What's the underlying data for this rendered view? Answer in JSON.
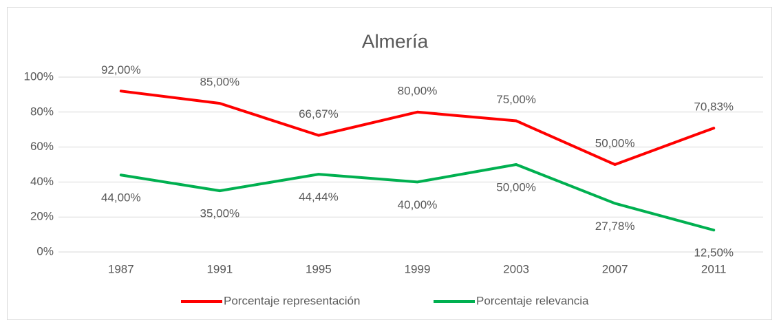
{
  "chart_data": {
    "type": "line",
    "title": "Almería",
    "categories": [
      "1987",
      "1991",
      "1995",
      "1999",
      "2003",
      "2007",
      "2011"
    ],
    "series": [
      {
        "name": "Porcentaje representación",
        "color": "#ff0000",
        "values": [
          92,
          85,
          66.67,
          80,
          75,
          50,
          70.83
        ],
        "value_labels": [
          "92,00%",
          "85,00%",
          "66,67%",
          "80,00%",
          "75,00%",
          "50,00%",
          "70,83%"
        ]
      },
      {
        "name": "Porcentaje relevancia",
        "color": "#00b050",
        "values": [
          44,
          35,
          44.44,
          40,
          50,
          27.78,
          12.5
        ],
        "value_labels": [
          "44,00%",
          "35,00%",
          "44,44%",
          "40,00%",
          "50,00%",
          "27,78%",
          "12,50%"
        ]
      }
    ],
    "ylim": [
      0,
      100
    ],
    "yticks": [
      {
        "value": 0,
        "label": "0%"
      },
      {
        "value": 20,
        "label": "20%"
      },
      {
        "value": 40,
        "label": "40%"
      },
      {
        "value": 60,
        "label": "60%"
      },
      {
        "value": 80,
        "label": "80%"
      },
      {
        "value": 100,
        "label": "100%"
      }
    ],
    "grid": true,
    "legend": "bottom"
  }
}
